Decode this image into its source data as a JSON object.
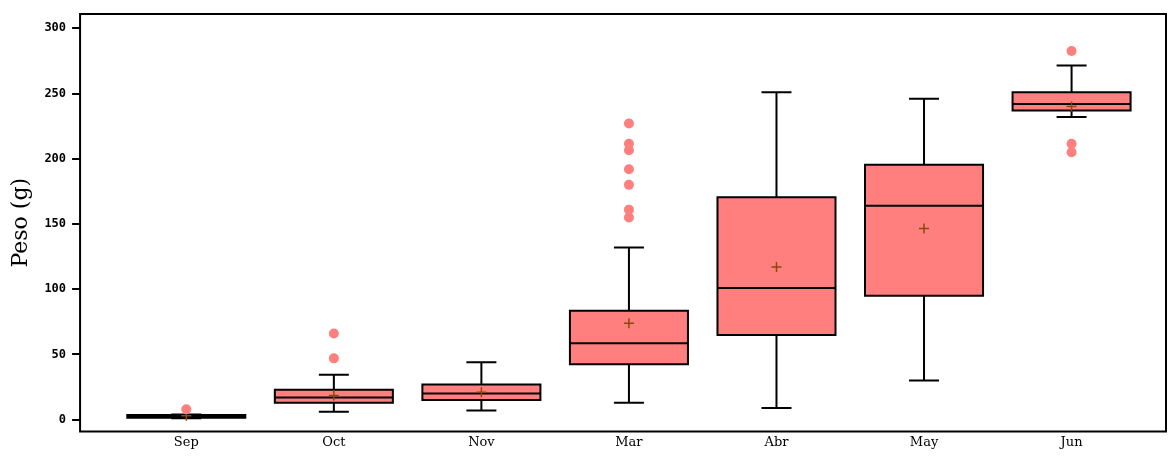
{
  "chart_data": {
    "type": "box",
    "ylabel": "Peso (g)",
    "categories": [
      "Sep",
      "Oct",
      "Nov",
      "Mar",
      "Abr",
      "May",
      "Jun"
    ],
    "color": "#ff7f7f",
    "ylim": [
      -9,
      311
    ],
    "yticks": [
      0,
      50,
      100,
      150,
      200,
      250,
      300
    ],
    "grid": false,
    "boxes": [
      {
        "low": 1,
        "q1": 1.5,
        "median": 2.5,
        "q3": 3.5,
        "high": 4,
        "mean": 3,
        "outliers": [
          8
        ]
      },
      {
        "low": 6,
        "q1": 13,
        "median": 17,
        "q3": 23,
        "high": 34.5,
        "mean": 18.5,
        "outliers": [
          47,
          66
        ]
      },
      {
        "low": 7,
        "q1": 15,
        "median": 20,
        "q3": 27,
        "high": 44,
        "mean": 21
      },
      {
        "low": 13,
        "q1": 42.5,
        "median": 58.5,
        "q3": 83.5,
        "high": 132,
        "mean": 74,
        "outliers": [
          155,
          161,
          180,
          192,
          206.5,
          211.5,
          227
        ]
      },
      {
        "low": 9,
        "q1": 65,
        "median": 101,
        "q3": 170.5,
        "high": 251,
        "mean": 117
      },
      {
        "low": 30,
        "q1": 95,
        "median": 164,
        "q3": 195.5,
        "high": 246,
        "mean": 146.5
      },
      {
        "low": 232,
        "q1": 237,
        "median": 242,
        "q3": 251,
        "high": 271.5,
        "mean": 240,
        "outliers": [
          205,
          211.5,
          282.7
        ]
      }
    ]
  }
}
